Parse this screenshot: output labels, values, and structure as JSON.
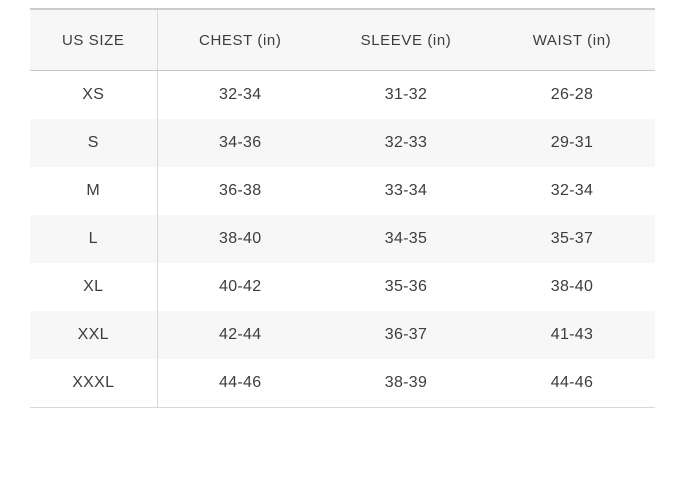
{
  "chart_data": {
    "type": "table",
    "columns": [
      "US SIZE",
      "CHEST (in)",
      "SLEEVE (in)",
      "WAIST (in)"
    ],
    "rows": [
      [
        "XS",
        "32-34",
        "31-32",
        "26-28"
      ],
      [
        "S",
        "34-36",
        "32-33",
        "29-31"
      ],
      [
        "M",
        "36-38",
        "33-34",
        "32-34"
      ],
      [
        "L",
        "38-40",
        "34-35",
        "35-37"
      ],
      [
        "XL",
        "40-42",
        "35-36",
        "38-40"
      ],
      [
        "XXL",
        "42-44",
        "36-37",
        "41-43"
      ],
      [
        "XXXL",
        "44-46",
        "38-39",
        "44-46"
      ]
    ],
    "layout": {
      "grid": "row-stripes",
      "stripe_rows": [
        "S",
        "L",
        "XXL"
      ]
    }
  },
  "colors": {
    "page_bg": "#ffffff",
    "header_bg": "#f7f7f7",
    "stripe_bg": "#f7f7f7",
    "rule_top": "#cbcbcb",
    "rule_divider": "#d9d9d9",
    "text": "#3d3d3d"
  }
}
